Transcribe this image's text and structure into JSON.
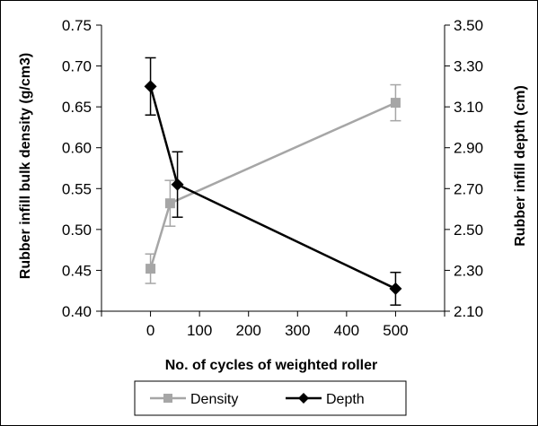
{
  "chart_data": {
    "type": "line",
    "title": "",
    "xlabel": "No. of cycles of weighted roller",
    "ylabel_left": "Rubber infill bulk density (g/cm3)",
    "ylabel_right": "Rubber infill depth (cm)",
    "xlim": [
      -100,
      600
    ],
    "x_ticks": [
      "0",
      "100",
      "200",
      "300",
      "400",
      "500"
    ],
    "x_tick_values": [
      0,
      100,
      200,
      300,
      400,
      500
    ],
    "ylim_left": [
      0.4,
      0.75
    ],
    "y_left_ticks": [
      "0.40",
      "0.45",
      "0.50",
      "0.55",
      "0.60",
      "0.65",
      "0.70",
      "0.75"
    ],
    "y_left_tick_values": [
      0.4,
      0.45,
      0.5,
      0.55,
      0.6,
      0.65,
      0.7,
      0.75
    ],
    "ylim_right": [
      2.1,
      3.5
    ],
    "y_right_ticks": [
      "2.10",
      "2.30",
      "2.50",
      "2.70",
      "2.90",
      "3.10",
      "3.30",
      "3.50"
    ],
    "y_right_tick_values": [
      2.1,
      2.3,
      2.5,
      2.7,
      2.9,
      3.1,
      3.3,
      3.5
    ],
    "grid": false,
    "legend_position": "bottom",
    "series": [
      {
        "name": "Density",
        "axis": "left",
        "color": "#a6a6a6",
        "marker": "square",
        "x": [
          0,
          40,
          500
        ],
        "y": [
          0.452,
          0.532,
          0.655
        ],
        "error": [
          0.018,
          0.028,
          0.022
        ]
      },
      {
        "name": "Depth",
        "axis": "right",
        "color": "#000000",
        "marker": "diamond",
        "x": [
          0,
          55,
          500
        ],
        "y": [
          3.2,
          2.72,
          2.21
        ],
        "error": [
          0.14,
          0.16,
          0.08
        ]
      }
    ]
  }
}
